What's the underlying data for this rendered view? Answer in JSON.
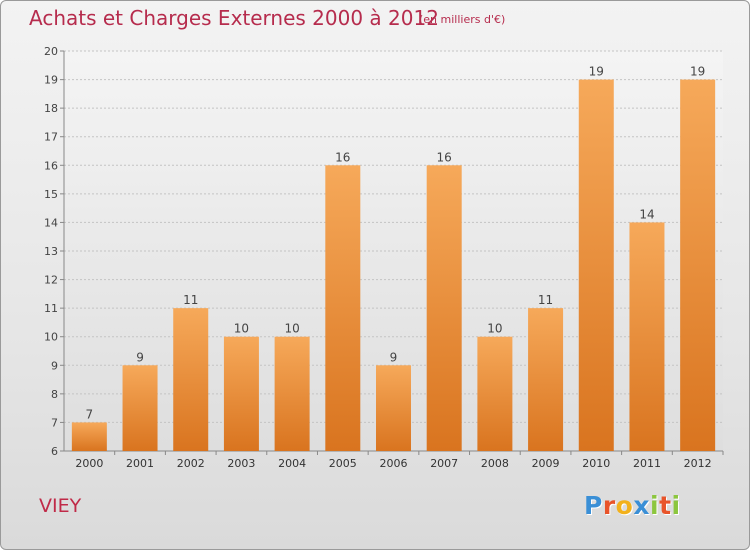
{
  "title": "Achats et Charges Externes 2000 à 2012",
  "unit_note": "(en milliers d'€)",
  "commune": "VIEY",
  "brand": {
    "name": "Proxiti",
    "letter_colors": [
      "#3a8fd6",
      "#e8542a",
      "#f2b11c",
      "#3a8fd6",
      "#8cc63e",
      "#e8542a",
      "#8cc63e"
    ]
  },
  "colors": {
    "bar_light": "#f6a95a",
    "bar_dark": "#d9741f",
    "title": "#b62c4d"
  },
  "chart_data": {
    "type": "bar",
    "categories": [
      "2000",
      "2001",
      "2002",
      "2003",
      "2004",
      "2005",
      "2006",
      "2007",
      "2008",
      "2009",
      "2010",
      "2011",
      "2012"
    ],
    "values": [
      7,
      9,
      11,
      10,
      10,
      16,
      9,
      16,
      10,
      11,
      19,
      14,
      19
    ],
    "data_labels": [
      "7",
      "9",
      "11",
      "10",
      "10",
      "16",
      "9",
      "16",
      "10",
      "11",
      "19",
      "14",
      "19"
    ],
    "y_ticks": [
      "6",
      "7",
      "8",
      "9",
      "10",
      "11",
      "12",
      "13",
      "14",
      "15",
      "16",
      "17",
      "18",
      "19",
      "20"
    ],
    "ylim": [
      6,
      20
    ],
    "title": "Achats et Charges Externes 2000 à 2012",
    "ylabel": "",
    "xlabel": "",
    "grid": "horizontal dashed"
  }
}
